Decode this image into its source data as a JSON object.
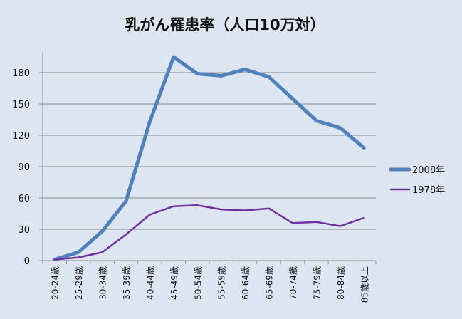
{
  "chart_data": {
    "type": "line",
    "title": "乳がん罹患率（人口10万対）",
    "categories": [
      "20-24歳",
      "25-29歳",
      "30-34歳",
      "35-39歳",
      "40-44歳",
      "45-49歳",
      "50-54歳",
      "55-59歳",
      "60-64歳",
      "65-69歳",
      "70-74歳",
      "75-79歳",
      "80-84歳",
      "85歳以上"
    ],
    "ylim": [
      0,
      180
    ],
    "yticks": [
      0,
      30,
      60,
      90,
      120,
      150,
      180
    ],
    "grid": true,
    "legend_position": "right",
    "series": [
      {
        "name": "2008年",
        "color": "#4f81bd",
        "values": [
          1,
          8,
          28,
          57,
          133,
          195,
          179,
          177,
          183,
          176,
          155,
          134,
          127,
          108
        ]
      },
      {
        "name": "1978年",
        "color": "#7030a0",
        "values": [
          1,
          3,
          8,
          25,
          44,
          52,
          53,
          49,
          48,
          50,
          36,
          37,
          33,
          41
        ]
      }
    ]
  }
}
